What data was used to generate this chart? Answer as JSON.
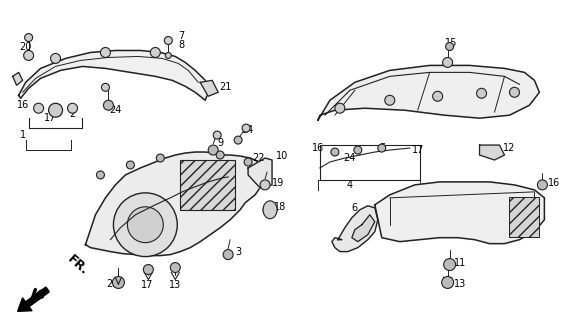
{
  "bg_color": "#ffffff",
  "line_color": "#222222",
  "fig_width": 5.83,
  "fig_height": 3.2,
  "dpi": 100
}
